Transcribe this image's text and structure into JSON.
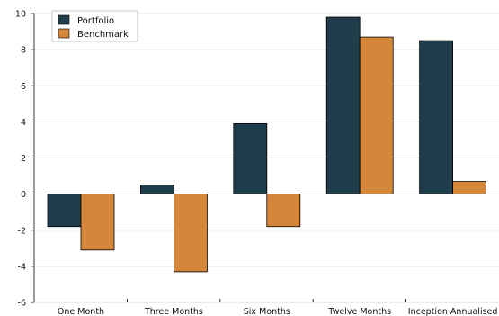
{
  "chart_data": {
    "type": "bar",
    "title": "",
    "xlabel": "",
    "ylabel": "",
    "categories": [
      "One Month",
      "Three Months",
      "Six Months",
      "Twelve Months",
      "Inception Annualised"
    ],
    "series": [
      {
        "name": "Portfolio",
        "color": "#203d4c",
        "values": [
          -1.8,
          0.5,
          3.9,
          9.8,
          8.5
        ]
      },
      {
        "name": "Benchmark",
        "color": "#d4873b",
        "values": [
          -3.1,
          -4.3,
          -1.8,
          8.7,
          0.7
        ]
      }
    ],
    "ylim": [
      -6,
      10
    ],
    "yticks": [
      -6,
      -4,
      -2,
      0,
      2,
      4,
      6,
      8,
      10
    ],
    "grid": true,
    "legend_position": "top-left"
  }
}
